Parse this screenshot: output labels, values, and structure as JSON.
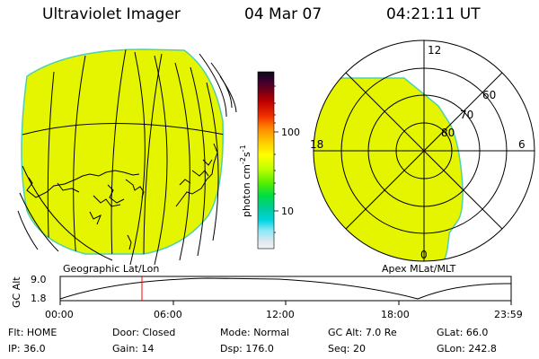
{
  "header": {
    "instrument": "Ultraviolet Imager",
    "date": "04 Mar 07",
    "time": "04:21:11 UT"
  },
  "colors": {
    "fill": "#e5f500",
    "limb": "#4cd1b0",
    "line": "#000000",
    "cursor": "#ff0000"
  },
  "geo_panel": {
    "caption": "Geographic Lat/Lon"
  },
  "apex_panel": {
    "caption": "Apex MLat/MLT",
    "mlt_labels": {
      "top": "12",
      "left": "18",
      "right": "6",
      "bottom": "0"
    },
    "lat_labels": [
      "60",
      "70",
      "80"
    ]
  },
  "colorbar": {
    "unit": "photon cm",
    "exp1": "-2",
    "mid": "s",
    "exp2": "-1",
    "ticks": [
      "100",
      "10"
    ],
    "scale": "log",
    "stops": [
      {
        "frac": 0.0,
        "color": "#0a0a14"
      },
      {
        "frac": 0.05,
        "color": "#3a0030"
      },
      {
        "frac": 0.1,
        "color": "#6a0018"
      },
      {
        "frac": 0.17,
        "color": "#c00000"
      },
      {
        "frac": 0.25,
        "color": "#f03000"
      },
      {
        "frac": 0.32,
        "color": "#ff8800"
      },
      {
        "frac": 0.4,
        "color": "#ffcc00"
      },
      {
        "frac": 0.47,
        "color": "#ffff00"
      },
      {
        "frac": 0.55,
        "color": "#bfff00"
      },
      {
        "frac": 0.63,
        "color": "#55ee00"
      },
      {
        "frac": 0.7,
        "color": "#00dd44"
      },
      {
        "frac": 0.77,
        "color": "#00cc99"
      },
      {
        "frac": 0.84,
        "color": "#00d4e0"
      },
      {
        "frac": 0.9,
        "color": "#90e8f8"
      },
      {
        "frac": 0.96,
        "color": "#dfe8ee"
      },
      {
        "frac": 1.0,
        "color": "#f2f2f2"
      }
    ]
  },
  "altitude_plot": {
    "ylabel": "GC Alt",
    "yticks": [
      "9.0",
      "1.8"
    ],
    "xticks": [
      "00:00",
      "06:00",
      "12:00",
      "18:00",
      "23:59"
    ],
    "cursor_hour": 4.35
  },
  "status": {
    "row1": [
      {
        "label": "Flt:",
        "value": "HOME"
      },
      {
        "label": "Door:",
        "value": "Closed"
      },
      {
        "label": "Mode:",
        "value": "Normal"
      },
      {
        "label": "GC Alt:",
        "value": "7.0 Re"
      },
      {
        "label": "GLat:",
        "value": "66.0"
      }
    ],
    "row2": [
      {
        "label": "IP:",
        "value": "36.0"
      },
      {
        "label": "Gain:",
        "value": "14"
      },
      {
        "label": "Dsp:",
        "value": "176.0"
      },
      {
        "label": "Seq:",
        "value": "20"
      },
      {
        "label": "GLon:",
        "value": "242.8"
      }
    ]
  }
}
